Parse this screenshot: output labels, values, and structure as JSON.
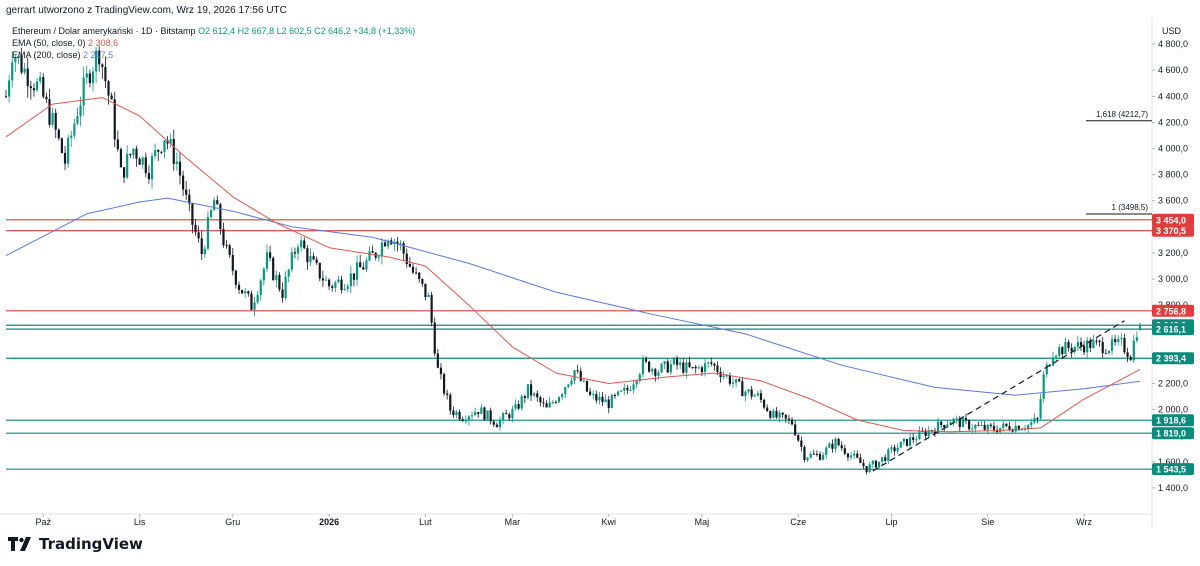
{
  "header": {
    "text": "gerrart utworzono z TradingView.com, Wrz 19, 2026 17:56 UTC"
  },
  "legend": {
    "symbol": "Ethereum / Dolar amerykański · 1D · Bitstamp",
    "ohlc": "O2 612,4  H2 667,8  L2 602,5  C2 646,2  +34,8 (+1,33%)",
    "ema50_label": "EMA (50, close, 0)",
    "ema50_value": "2 308,6",
    "ema200_label": "EMA (200, close)",
    "ema200_value": "2 217,5"
  },
  "logo": {
    "text": "TradingView"
  },
  "colors": {
    "up": "#089981",
    "down": "#131722",
    "ema50": "#e0574f",
    "ema200": "#5b7bd8",
    "resistance": "#e03e3e",
    "support": "#0c8a7a"
  },
  "chart_data": {
    "type": "candlestick",
    "currency": "USD",
    "ylim": [
      1200,
      5000
    ],
    "y_ticks": [
      1400,
      1600,
      1800,
      2000,
      2200,
      2400,
      2600,
      2800,
      3000,
      3200,
      3400,
      3600,
      3800,
      4000,
      4200,
      4400,
      4600,
      4800
    ],
    "y_tick_labels": [
      "1 400,0",
      "1 600,0",
      "1 800,0",
      "2 000,0",
      "2 200,0",
      "2 400,0",
      "2 600,0",
      "2 800,0",
      "3 000,0",
      "3 200,0",
      "3 400,0",
      "3 600,0",
      "3 800,0",
      "4 000,0",
      "4 200,0",
      "4 400,0",
      "4 600,0",
      "4 800,0"
    ],
    "x_range": [
      "2025-09-19",
      "2026-09-19"
    ],
    "x_ticks": [
      {
        "date": "2025-10-01",
        "label": "Paź"
      },
      {
        "date": "2025-11-01",
        "label": "Lis"
      },
      {
        "date": "2025-12-01",
        "label": "Gru"
      },
      {
        "date": "2026-01-01",
        "label": "2026"
      },
      {
        "date": "2026-02-01",
        "label": "Lut"
      },
      {
        "date": "2026-03-01",
        "label": "Mar"
      },
      {
        "date": "2026-04-01",
        "label": "Kwi"
      },
      {
        "date": "2026-05-01",
        "label": "Maj"
      },
      {
        "date": "2026-06-01",
        "label": "Cze"
      },
      {
        "date": "2026-07-01",
        "label": "Lip"
      },
      {
        "date": "2026-08-01",
        "label": "Sie"
      },
      {
        "date": "2026-09-01",
        "label": "Wrz"
      }
    ],
    "price_path": [
      [
        "2025-09-19",
        4400
      ],
      [
        "2025-09-21",
        4750
      ],
      [
        "2025-09-25",
        4600
      ],
      [
        "2025-09-30",
        4450
      ],
      [
        "2025-10-04",
        4200
      ],
      [
        "2025-10-08",
        3900
      ],
      [
        "2025-10-12",
        4300
      ],
      [
        "2025-10-16",
        4600
      ],
      [
        "2025-10-19",
        4750
      ],
      [
        "2025-10-23",
        4300
      ],
      [
        "2025-10-26",
        3800
      ],
      [
        "2025-10-30",
        4000
      ],
      [
        "2025-11-04",
        3850
      ],
      [
        "2025-11-09",
        4100
      ],
      [
        "2025-11-13",
        3900
      ],
      [
        "2025-11-17",
        3500
      ],
      [
        "2025-11-21",
        3200
      ],
      [
        "2025-11-25",
        3600
      ],
      [
        "2025-11-29",
        3200
      ],
      [
        "2025-12-03",
        2950
      ],
      [
        "2025-12-07",
        2800
      ],
      [
        "2025-12-12",
        3150
      ],
      [
        "2025-12-17",
        2900
      ],
      [
        "2025-12-22",
        3300
      ],
      [
        "2025-12-27",
        3100
      ],
      [
        "2026-01-01",
        2950
      ],
      [
        "2026-01-07",
        3000
      ],
      [
        "2026-01-12",
        3100
      ],
      [
        "2026-01-16",
        3200
      ],
      [
        "2026-01-20",
        3350
      ],
      [
        "2026-01-24",
        3250
      ],
      [
        "2026-01-28",
        3050
      ],
      [
        "2026-02-02",
        2850
      ],
      [
        "2026-02-05",
        2300
      ],
      [
        "2026-02-09",
        2000
      ],
      [
        "2026-02-13",
        1950
      ],
      [
        "2026-02-18",
        2000
      ],
      [
        "2026-02-24",
        1900
      ],
      [
        "2026-03-02",
        2000
      ],
      [
        "2026-03-06",
        2150
      ],
      [
        "2026-03-12",
        2000
      ],
      [
        "2026-03-17",
        2150
      ],
      [
        "2026-03-21",
        2300
      ],
      [
        "2026-03-26",
        2100
      ],
      [
        "2026-04-01",
        2050
      ],
      [
        "2026-04-07",
        2150
      ],
      [
        "2026-04-12",
        2350
      ],
      [
        "2026-04-17",
        2300
      ],
      [
        "2026-04-22",
        2350
      ],
      [
        "2026-04-28",
        2300
      ],
      [
        "2026-05-04",
        2350
      ],
      [
        "2026-05-09",
        2250
      ],
      [
        "2026-05-14",
        2150
      ],
      [
        "2026-05-19",
        2100
      ],
      [
        "2026-05-24",
        1950
      ],
      [
        "2026-05-30",
        1900
      ],
      [
        "2026-06-03",
        1650
      ],
      [
        "2026-06-08",
        1650
      ],
      [
        "2026-06-13",
        1750
      ],
      [
        "2026-06-18",
        1650
      ],
      [
        "2026-06-23",
        1550
      ],
      [
        "2026-06-27",
        1600
      ],
      [
        "2026-07-02",
        1700
      ],
      [
        "2026-07-08",
        1780
      ],
      [
        "2026-07-14",
        1850
      ],
      [
        "2026-07-20",
        1920
      ],
      [
        "2026-07-26",
        1880
      ],
      [
        "2026-08-01",
        1850
      ],
      [
        "2026-08-08",
        1870
      ],
      [
        "2026-08-14",
        1880
      ],
      [
        "2026-08-17",
        1920
      ],
      [
        "2026-08-19",
        2250
      ],
      [
        "2026-08-22",
        2450
      ],
      [
        "2026-08-28",
        2480
      ],
      [
        "2026-09-03",
        2500
      ],
      [
        "2026-09-09",
        2480
      ],
      [
        "2026-09-13",
        2500
      ],
      [
        "2026-09-16",
        2420
      ],
      [
        "2026-09-18",
        2612
      ],
      [
        "2026-09-19",
        2646
      ]
    ],
    "ema50": [
      [
        "2025-09-19",
        4090
      ],
      [
        "2025-10-04",
        4340
      ],
      [
        "2025-10-20",
        4390
      ],
      [
        "2025-11-01",
        4250
      ],
      [
        "2025-11-15",
        3950
      ],
      [
        "2025-12-01",
        3630
      ],
      [
        "2025-12-15",
        3430
      ],
      [
        "2026-01-01",
        3240
      ],
      [
        "2026-01-20",
        3170
      ],
      [
        "2026-02-01",
        3100
      ],
      [
        "2026-02-15",
        2800
      ],
      [
        "2026-03-01",
        2480
      ],
      [
        "2026-03-15",
        2280
      ],
      [
        "2026-04-01",
        2200
      ],
      [
        "2026-04-20",
        2250
      ],
      [
        "2026-05-05",
        2280
      ],
      [
        "2026-05-20",
        2220
      ],
      [
        "2026-06-05",
        2080
      ],
      [
        "2026-06-20",
        1920
      ],
      [
        "2026-07-05",
        1840
      ],
      [
        "2026-07-20",
        1830
      ],
      [
        "2026-08-05",
        1840
      ],
      [
        "2026-08-18",
        1860
      ],
      [
        "2026-09-01",
        2080
      ],
      [
        "2026-09-19",
        2308
      ]
    ],
    "ema200": [
      [
        "2025-09-19",
        3180
      ],
      [
        "2025-10-15",
        3500
      ],
      [
        "2025-11-01",
        3590
      ],
      [
        "2025-11-10",
        3620
      ],
      [
        "2025-12-01",
        3520
      ],
      [
        "2025-12-20",
        3400
      ],
      [
        "2026-01-15",
        3320
      ],
      [
        "2026-02-15",
        3120
      ],
      [
        "2026-03-15",
        2900
      ],
      [
        "2026-04-15",
        2730
      ],
      [
        "2026-05-15",
        2580
      ],
      [
        "2026-06-15",
        2340
      ],
      [
        "2026-07-15",
        2170
      ],
      [
        "2026-08-10",
        2110
      ],
      [
        "2026-09-01",
        2160
      ],
      [
        "2026-09-19",
        2217
      ]
    ],
    "horizontal_levels": [
      {
        "value": 3454.0,
        "label": "3 454,0",
        "kind": "resistance"
      },
      {
        "value": 3370.5,
        "label": "3 370,5",
        "kind": "resistance"
      },
      {
        "value": 2756.8,
        "label": "2 756,8",
        "kind": "resistance"
      },
      {
        "value": 2646.2,
        "label": "2 646,2",
        "kind": "support"
      },
      {
        "value": 2616.1,
        "label": "2 616,1",
        "kind": "support"
      },
      {
        "value": 2393.4,
        "label": "2 393,4",
        "kind": "support"
      },
      {
        "value": 1918.6,
        "label": "1 918,6",
        "kind": "support"
      },
      {
        "value": 1819.0,
        "label": "1 819,0",
        "kind": "support"
      },
      {
        "value": 1543.5,
        "label": "1 543,5",
        "kind": "support"
      }
    ],
    "fib_levels": [
      {
        "label": "1,618 (4212,7)",
        "value": 4212.7
      },
      {
        "label": "1 (3498,5)",
        "value": 3498.5
      }
    ],
    "trendline": [
      [
        "2026-06-25",
        1530
      ],
      [
        "2026-09-14",
        2680
      ]
    ]
  }
}
